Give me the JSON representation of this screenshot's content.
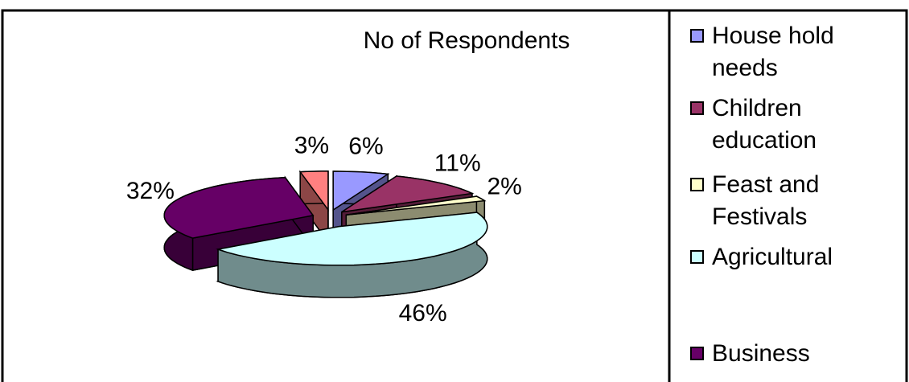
{
  "chart_data": {
    "type": "pie3d",
    "title": "No of Respondents",
    "categories": [
      "House hold needs",
      "Children education",
      "Feast and Festivals",
      "Agricultural",
      "Business",
      null
    ],
    "values": [
      6,
      11,
      2,
      46,
      32,
      3
    ],
    "value_labels": [
      "6%",
      "11%",
      "2%",
      "46%",
      "32%",
      "3%"
    ],
    "colors": [
      "#9999ff",
      "#993366",
      "#ffffcc",
      "#ccffff",
      "#660066",
      "#ff8080"
    ],
    "legend": "right"
  }
}
